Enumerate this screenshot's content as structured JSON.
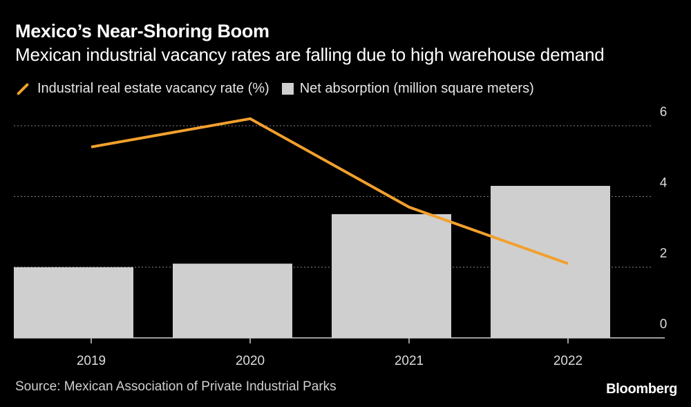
{
  "chart_data": {
    "type": "bar+line",
    "title": "Mexico’s Near-Shoring Boom",
    "subtitle": "Mexican industrial vacancy rates are falling due to high warehouse demand",
    "categories": [
      "2019",
      "2020",
      "2021",
      "2022"
    ],
    "series": [
      {
        "name": "Industrial real estate vacancy rate (%)",
        "type": "line",
        "values": [
          5.4,
          6.2,
          3.7,
          2.1
        ],
        "color": "#f2a02d"
      },
      {
        "name": "Net absorption (million square meters)",
        "type": "bar",
        "values": [
          2.0,
          2.1,
          3.5,
          4.3
        ],
        "color": "#cfcfcf"
      }
    ],
    "yaxis": {
      "ylim": [
        0,
        6
      ],
      "ticks": [
        "0",
        "2",
        "4",
        "6"
      ],
      "position": "right"
    },
    "gridlines": true,
    "legend_position": "top-left"
  },
  "footer": {
    "source": "Source: Mexican Association of Private Industrial Parks",
    "brand": "Bloomberg"
  }
}
